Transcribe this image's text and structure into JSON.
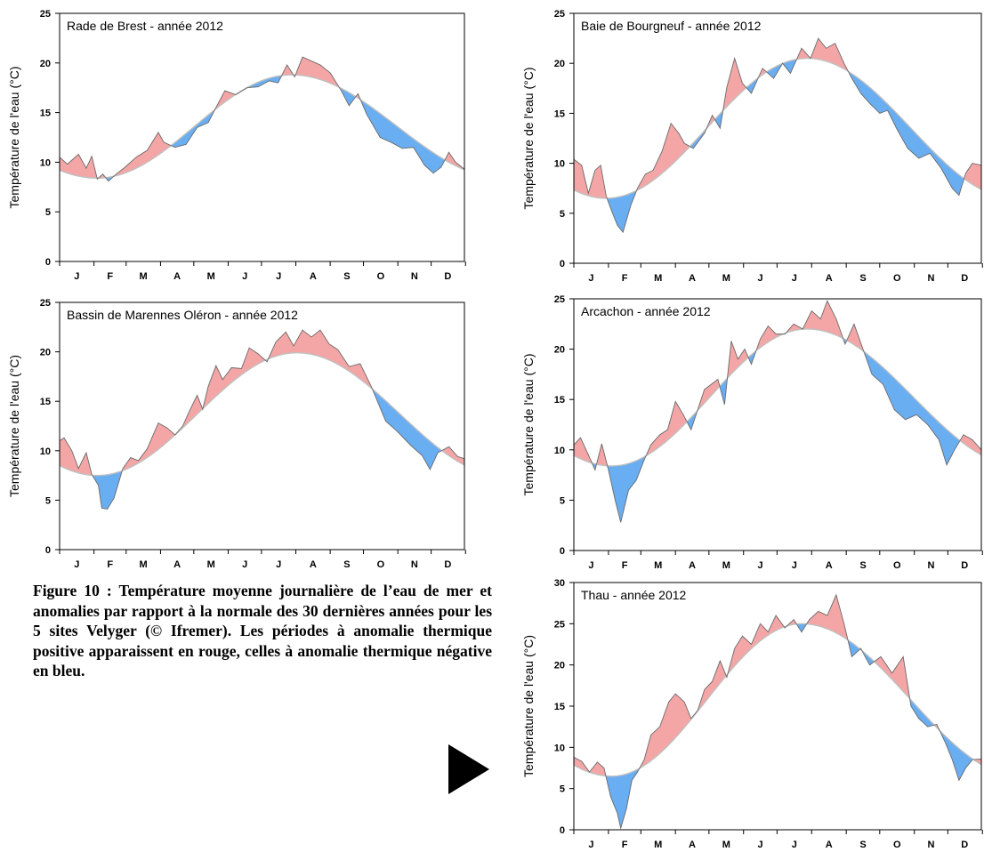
{
  "y_axis_label": "Température de l'eau (°C)",
  "months": [
    "J",
    "F",
    "M",
    "A",
    "M",
    "J",
    "J",
    "A",
    "S",
    "O",
    "N",
    "D"
  ],
  "colors": {
    "positive_anomaly": "#f4a6a6",
    "negative_anomaly": "#6aaef2",
    "observed_line": "#6b6b6b",
    "normal_line": "#c0c0c0"
  },
  "caption": "Figure 10 : Température moyenne journalière de l’eau de mer et anomalies par rapport à la normale des 30 dernières années pour les 5 sites Velyger (© Ifremer). Les périodes à anomalie thermique positive apparaissent en rouge, celles à anomalie thermique négative en bleu.",
  "chart_data": [
    {
      "type": "area",
      "title": "Rade de Brest - année 2012",
      "ylabel": "Température de l'eau (°C)",
      "ylim": [
        0,
        25
      ],
      "yticks": [
        0,
        5,
        10,
        15,
        20,
        25
      ],
      "normal": {
        "min": 8.4,
        "max": 18.8,
        "trough_day": 35,
        "peak_day": 210
      },
      "observed": [
        {
          "day": 1,
          "value": 10.5
        },
        {
          "day": 8,
          "value": 9.8
        },
        {
          "day": 18,
          "value": 10.8
        },
        {
          "day": 25,
          "value": 9.4
        },
        {
          "day": 30,
          "value": 10.6
        },
        {
          "day": 35,
          "value": 8.3
        },
        {
          "day": 40,
          "value": 8.8
        },
        {
          "day": 45,
          "value": 8.1
        },
        {
          "day": 52,
          "value": 8.8
        },
        {
          "day": 60,
          "value": 9.5
        },
        {
          "day": 70,
          "value": 10.5
        },
        {
          "day": 80,
          "value": 11.2
        },
        {
          "day": 90,
          "value": 13.0
        },
        {
          "day": 95,
          "value": 12.0
        },
        {
          "day": 105,
          "value": 11.5
        },
        {
          "day": 115,
          "value": 11.8
        },
        {
          "day": 125,
          "value": 13.5
        },
        {
          "day": 135,
          "value": 14.0
        },
        {
          "day": 142,
          "value": 15.5
        },
        {
          "day": 150,
          "value": 17.2
        },
        {
          "day": 160,
          "value": 16.8
        },
        {
          "day": 170,
          "value": 17.5
        },
        {
          "day": 180,
          "value": 17.6
        },
        {
          "day": 190,
          "value": 18.2
        },
        {
          "day": 198,
          "value": 18.0
        },
        {
          "day": 206,
          "value": 19.8
        },
        {
          "day": 213,
          "value": 18.6
        },
        {
          "day": 220,
          "value": 20.6
        },
        {
          "day": 228,
          "value": 20.2
        },
        {
          "day": 236,
          "value": 19.8
        },
        {
          "day": 245,
          "value": 19.0
        },
        {
          "day": 255,
          "value": 17.2
        },
        {
          "day": 262,
          "value": 15.7
        },
        {
          "day": 270,
          "value": 16.9
        },
        {
          "day": 278,
          "value": 14.8
        },
        {
          "day": 290,
          "value": 12.5
        },
        {
          "day": 300,
          "value": 12.0
        },
        {
          "day": 310,
          "value": 11.4
        },
        {
          "day": 320,
          "value": 11.5
        },
        {
          "day": 330,
          "value": 9.7
        },
        {
          "day": 338,
          "value": 8.9
        },
        {
          "day": 345,
          "value": 9.5
        },
        {
          "day": 352,
          "value": 11.0
        },
        {
          "day": 358,
          "value": 10.0
        },
        {
          "day": 366,
          "value": 9.3
        }
      ]
    },
    {
      "type": "area",
      "title": "Bassin de Marennes Oléron - année 2012",
      "ylabel": "Température de l'eau (°C)",
      "ylim": [
        0,
        25
      ],
      "yticks": [
        0,
        5,
        10,
        15,
        20,
        25
      ],
      "normal": {
        "min": 7.5,
        "max": 19.9,
        "trough_day": 35,
        "peak_day": 215
      },
      "observed": [
        {
          "day": 1,
          "value": 11.0
        },
        {
          "day": 5,
          "value": 11.3
        },
        {
          "day": 12,
          "value": 10.0
        },
        {
          "day": 18,
          "value": 8.2
        },
        {
          "day": 25,
          "value": 9.8
        },
        {
          "day": 30,
          "value": 7.6
        },
        {
          "day": 36,
          "value": 6.5
        },
        {
          "day": 39,
          "value": 4.2
        },
        {
          "day": 44,
          "value": 4.1
        },
        {
          "day": 50,
          "value": 5.2
        },
        {
          "day": 58,
          "value": 8.2
        },
        {
          "day": 65,
          "value": 9.3
        },
        {
          "day": 72,
          "value": 9.0
        },
        {
          "day": 80,
          "value": 10.2
        },
        {
          "day": 90,
          "value": 12.8
        },
        {
          "day": 98,
          "value": 12.3
        },
        {
          "day": 105,
          "value": 11.6
        },
        {
          "day": 112,
          "value": 12.5
        },
        {
          "day": 118,
          "value": 14.0
        },
        {
          "day": 125,
          "value": 15.6
        },
        {
          "day": 130,
          "value": 14.2
        },
        {
          "day": 135,
          "value": 16.5
        },
        {
          "day": 142,
          "value": 18.6
        },
        {
          "day": 148,
          "value": 17.2
        },
        {
          "day": 156,
          "value": 18.4
        },
        {
          "day": 165,
          "value": 18.3
        },
        {
          "day": 172,
          "value": 20.4
        },
        {
          "day": 180,
          "value": 19.8
        },
        {
          "day": 188,
          "value": 19.0
        },
        {
          "day": 196,
          "value": 21.0
        },
        {
          "day": 205,
          "value": 22.0
        },
        {
          "day": 212,
          "value": 20.6
        },
        {
          "day": 220,
          "value": 22.2
        },
        {
          "day": 228,
          "value": 21.5
        },
        {
          "day": 236,
          "value": 22.2
        },
        {
          "day": 244,
          "value": 20.8
        },
        {
          "day": 252,
          "value": 20.2
        },
        {
          "day": 262,
          "value": 18.5
        },
        {
          "day": 272,
          "value": 18.8
        },
        {
          "day": 282,
          "value": 16.5
        },
        {
          "day": 295,
          "value": 13.0
        },
        {
          "day": 305,
          "value": 12.0
        },
        {
          "day": 318,
          "value": 10.5
        },
        {
          "day": 328,
          "value": 9.5
        },
        {
          "day": 335,
          "value": 8.1
        },
        {
          "day": 342,
          "value": 9.8
        },
        {
          "day": 352,
          "value": 10.4
        },
        {
          "day": 360,
          "value": 9.4
        },
        {
          "day": 366,
          "value": 9.2
        }
      ]
    },
    {
      "type": "area",
      "title": "Baie de Bourgneuf - année 2012",
      "ylabel": "Température de l'eau (°C)",
      "ylim": [
        0,
        25
      ],
      "yticks": [
        0,
        5,
        10,
        15,
        20,
        25
      ],
      "normal": {
        "min": 6.5,
        "max": 20.5,
        "trough_day": 30,
        "peak_day": 210
      },
      "observed": [
        {
          "day": 1,
          "value": 10.4
        },
        {
          "day": 8,
          "value": 9.8
        },
        {
          "day": 14,
          "value": 7.0
        },
        {
          "day": 20,
          "value": 9.3
        },
        {
          "day": 25,
          "value": 9.8
        },
        {
          "day": 30,
          "value": 6.7
        },
        {
          "day": 35,
          "value": 5.2
        },
        {
          "day": 40,
          "value": 3.8
        },
        {
          "day": 45,
          "value": 3.1
        },
        {
          "day": 52,
          "value": 5.8
        },
        {
          "day": 58,
          "value": 7.5
        },
        {
          "day": 65,
          "value": 8.9
        },
        {
          "day": 72,
          "value": 9.3
        },
        {
          "day": 80,
          "value": 11.2
        },
        {
          "day": 88,
          "value": 14.0
        },
        {
          "day": 95,
          "value": 13.0
        },
        {
          "day": 100,
          "value": 12.0
        },
        {
          "day": 108,
          "value": 11.5
        },
        {
          "day": 118,
          "value": 13.0
        },
        {
          "day": 125,
          "value": 14.8
        },
        {
          "day": 132,
          "value": 13.5
        },
        {
          "day": 138,
          "value": 17.6
        },
        {
          "day": 145,
          "value": 20.5
        },
        {
          "day": 152,
          "value": 18.0
        },
        {
          "day": 160,
          "value": 17.0
        },
        {
          "day": 170,
          "value": 19.5
        },
        {
          "day": 180,
          "value": 18.5
        },
        {
          "day": 188,
          "value": 20.0
        },
        {
          "day": 195,
          "value": 19.0
        },
        {
          "day": 205,
          "value": 21.5
        },
        {
          "day": 213,
          "value": 20.5
        },
        {
          "day": 220,
          "value": 22.5
        },
        {
          "day": 227,
          "value": 21.5
        },
        {
          "day": 235,
          "value": 22.0
        },
        {
          "day": 243,
          "value": 20.0
        },
        {
          "day": 250,
          "value": 18.5
        },
        {
          "day": 258,
          "value": 17.0
        },
        {
          "day": 266,
          "value": 16.0
        },
        {
          "day": 275,
          "value": 15.0
        },
        {
          "day": 282,
          "value": 15.3
        },
        {
          "day": 290,
          "value": 13.5
        },
        {
          "day": 300,
          "value": 11.5
        },
        {
          "day": 310,
          "value": 10.5
        },
        {
          "day": 320,
          "value": 11.0
        },
        {
          "day": 330,
          "value": 9.5
        },
        {
          "day": 340,
          "value": 7.5
        },
        {
          "day": 346,
          "value": 6.8
        },
        {
          "day": 352,
          "value": 9.0
        },
        {
          "day": 358,
          "value": 10.0
        },
        {
          "day": 366,
          "value": 9.8
        }
      ]
    },
    {
      "type": "area",
      "title": "Arcachon - année 2012",
      "ylabel": "Température de l'eau (°C)",
      "ylim": [
        0,
        25
      ],
      "yticks": [
        0,
        5,
        10,
        15,
        20,
        25
      ],
      "normal": {
        "min": 8.4,
        "max": 22.0,
        "trough_day": 35,
        "peak_day": 210
      },
      "observed": [
        {
          "day": 1,
          "value": 10.5
        },
        {
          "day": 7,
          "value": 11.2
        },
        {
          "day": 14,
          "value": 9.5
        },
        {
          "day": 20,
          "value": 8.0
        },
        {
          "day": 26,
          "value": 10.6
        },
        {
          "day": 32,
          "value": 8.0
        },
        {
          "day": 38,
          "value": 5.0
        },
        {
          "day": 43,
          "value": 2.8
        },
        {
          "day": 50,
          "value": 6.0
        },
        {
          "day": 57,
          "value": 7.0
        },
        {
          "day": 64,
          "value": 9.0
        },
        {
          "day": 70,
          "value": 10.5
        },
        {
          "day": 78,
          "value": 11.5
        },
        {
          "day": 85,
          "value": 12.0
        },
        {
          "day": 92,
          "value": 14.8
        },
        {
          "day": 99,
          "value": 13.5
        },
        {
          "day": 106,
          "value": 12.0
        },
        {
          "day": 112,
          "value": 14.0
        },
        {
          "day": 118,
          "value": 16.0
        },
        {
          "day": 124,
          "value": 16.5
        },
        {
          "day": 130,
          "value": 17.0
        },
        {
          "day": 136,
          "value": 14.5
        },
        {
          "day": 142,
          "value": 20.8
        },
        {
          "day": 148,
          "value": 19.0
        },
        {
          "day": 154,
          "value": 20.0
        },
        {
          "day": 160,
          "value": 18.5
        },
        {
          "day": 168,
          "value": 21.0
        },
        {
          "day": 175,
          "value": 22.3
        },
        {
          "day": 182,
          "value": 21.5
        },
        {
          "day": 190,
          "value": 21.5
        },
        {
          "day": 198,
          "value": 22.5
        },
        {
          "day": 206,
          "value": 22.0
        },
        {
          "day": 214,
          "value": 23.8
        },
        {
          "day": 222,
          "value": 23.0
        },
        {
          "day": 228,
          "value": 24.8
        },
        {
          "day": 236,
          "value": 23.0
        },
        {
          "day": 244,
          "value": 20.5
        },
        {
          "day": 252,
          "value": 22.5
        },
        {
          "day": 260,
          "value": 20.0
        },
        {
          "day": 268,
          "value": 17.5
        },
        {
          "day": 278,
          "value": 16.5
        },
        {
          "day": 288,
          "value": 14.0
        },
        {
          "day": 298,
          "value": 13.0
        },
        {
          "day": 308,
          "value": 13.5
        },
        {
          "day": 318,
          "value": 12.5
        },
        {
          "day": 328,
          "value": 11.0
        },
        {
          "day": 335,
          "value": 8.5
        },
        {
          "day": 342,
          "value": 10.0
        },
        {
          "day": 350,
          "value": 11.5
        },
        {
          "day": 358,
          "value": 11.0
        },
        {
          "day": 366,
          "value": 10.0
        }
      ]
    },
    {
      "type": "area",
      "title": "Thau - année 2012",
      "ylabel": "Température de l'eau (°C)",
      "ylim": [
        0,
        30
      ],
      "yticks": [
        0,
        5,
        10,
        15,
        20,
        25,
        30
      ],
      "normal": {
        "min": 6.5,
        "max": 25.0,
        "trough_day": 35,
        "peak_day": 205
      },
      "observed": [
        {
          "day": 1,
          "value": 8.8
        },
        {
          "day": 8,
          "value": 8.3
        },
        {
          "day": 15,
          "value": 7.0
        },
        {
          "day": 22,
          "value": 8.2
        },
        {
          "day": 28,
          "value": 7.5
        },
        {
          "day": 34,
          "value": 4.0
        },
        {
          "day": 40,
          "value": 2.0
        },
        {
          "day": 43,
          "value": 0.2
        },
        {
          "day": 48,
          "value": 2.5
        },
        {
          "day": 53,
          "value": 6.0
        },
        {
          "day": 58,
          "value": 7.0
        },
        {
          "day": 64,
          "value": 8.5
        },
        {
          "day": 70,
          "value": 11.5
        },
        {
          "day": 78,
          "value": 12.5
        },
        {
          "day": 86,
          "value": 15.5
        },
        {
          "day": 92,
          "value": 16.5
        },
        {
          "day": 100,
          "value": 15.5
        },
        {
          "day": 106,
          "value": 13.5
        },
        {
          "day": 112,
          "value": 14.5
        },
        {
          "day": 118,
          "value": 17.0
        },
        {
          "day": 125,
          "value": 18.0
        },
        {
          "day": 132,
          "value": 20.5
        },
        {
          "day": 138,
          "value": 18.5
        },
        {
          "day": 145,
          "value": 22.0
        },
        {
          "day": 152,
          "value": 23.5
        },
        {
          "day": 160,
          "value": 22.5
        },
        {
          "day": 168,
          "value": 25.0
        },
        {
          "day": 175,
          "value": 24.0
        },
        {
          "day": 182,
          "value": 26.0
        },
        {
          "day": 190,
          "value": 24.5
        },
        {
          "day": 198,
          "value": 25.5
        },
        {
          "day": 205,
          "value": 24.0
        },
        {
          "day": 212,
          "value": 25.5
        },
        {
          "day": 220,
          "value": 26.5
        },
        {
          "day": 228,
          "value": 26.0
        },
        {
          "day": 236,
          "value": 28.5
        },
        {
          "day": 243,
          "value": 25.0
        },
        {
          "day": 250,
          "value": 21.0
        },
        {
          "day": 258,
          "value": 22.0
        },
        {
          "day": 266,
          "value": 20.0
        },
        {
          "day": 276,
          "value": 21.0
        },
        {
          "day": 286,
          "value": 19.0
        },
        {
          "day": 296,
          "value": 21.0
        },
        {
          "day": 303,
          "value": 15.0
        },
        {
          "day": 310,
          "value": 13.5
        },
        {
          "day": 318,
          "value": 12.5
        },
        {
          "day": 326,
          "value": 12.8
        },
        {
          "day": 334,
          "value": 10.5
        },
        {
          "day": 340,
          "value": 8.5
        },
        {
          "day": 346,
          "value": 6.0
        },
        {
          "day": 352,
          "value": 7.5
        },
        {
          "day": 358,
          "value": 8.5
        },
        {
          "day": 366,
          "value": 8.6
        }
      ]
    }
  ]
}
